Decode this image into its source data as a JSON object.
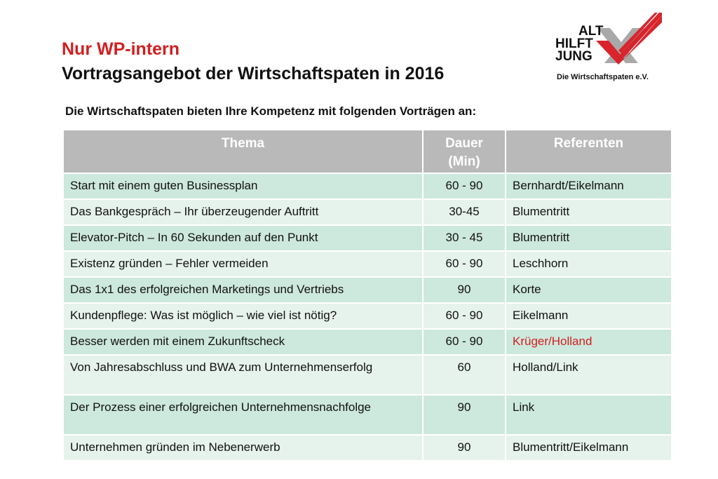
{
  "header": {
    "internal_label": "Nur WP-intern",
    "title": "Vortragsangebot der Wirtschaftspaten in 2016",
    "intro": "Die Wirtschaftspaten bieten Ihre Kompetenz mit folgenden Vorträgen an:"
  },
  "logo": {
    "line1": "ALT",
    "line2": "HILFT",
    "line3": "JUNG",
    "subtitle": "Die Wirtschaftspaten e.V.",
    "icon": "checkmark-logo-icon",
    "colors": {
      "red": "#d8242c",
      "grey": "#a9a9a9"
    }
  },
  "table": {
    "headers": {
      "topic": "Thema",
      "duration_line1": "Dauer",
      "duration_line2": "(Min)",
      "speakers": "Referenten"
    },
    "rows": [
      {
        "topic": "Start mit einem guten Businessplan",
        "duration": "60 - 90",
        "speakers": "Bernhardt/Eikelmann"
      },
      {
        "topic": "Das Bankgespräch – Ihr überzeugender Auftritt",
        "duration": "30-45",
        "speakers": "Blumentritt"
      },
      {
        "topic": "Elevator-Pitch – In 60 Sekunden auf den Punkt",
        "duration": "30 - 45",
        "speakers": "Blumentritt"
      },
      {
        "topic": "Existenz gründen – Fehler vermeiden",
        "duration": "60 - 90",
        "speakers": "Leschhorn"
      },
      {
        "topic": "Das 1x1 des erfolgreichen Marketings und Vertriebs",
        "duration": "90",
        "speakers": "Korte"
      },
      {
        "topic": "Kundenpflege: Was ist möglich – wie viel ist nötig?",
        "duration": "60 - 90",
        "speakers": "Eikelmann"
      },
      {
        "topic": "Besser werden mit einem Zukunftscheck",
        "duration": "60 - 90",
        "speakers": "Krüger/Holland"
      },
      {
        "topic": "Von Jahresabschluss und BWA zum Unternehmenserfolg",
        "duration": "60",
        "speakers": "Holland/Link"
      },
      {
        "topic": "Der Prozess einer erfolgreichen Unternehmensnachfolge",
        "duration": "90",
        "speakers": "Link"
      },
      {
        "topic": "Unternehmen gründen im Nebenerwerb",
        "duration": "90",
        "speakers": "Blumentritt/Eikelmann"
      }
    ]
  },
  "colors": {
    "accent_red": "#d21f1f",
    "header_grey": "#b9b9b9",
    "row_dark": "#cde8dd",
    "row_light": "#e6f3ec"
  }
}
